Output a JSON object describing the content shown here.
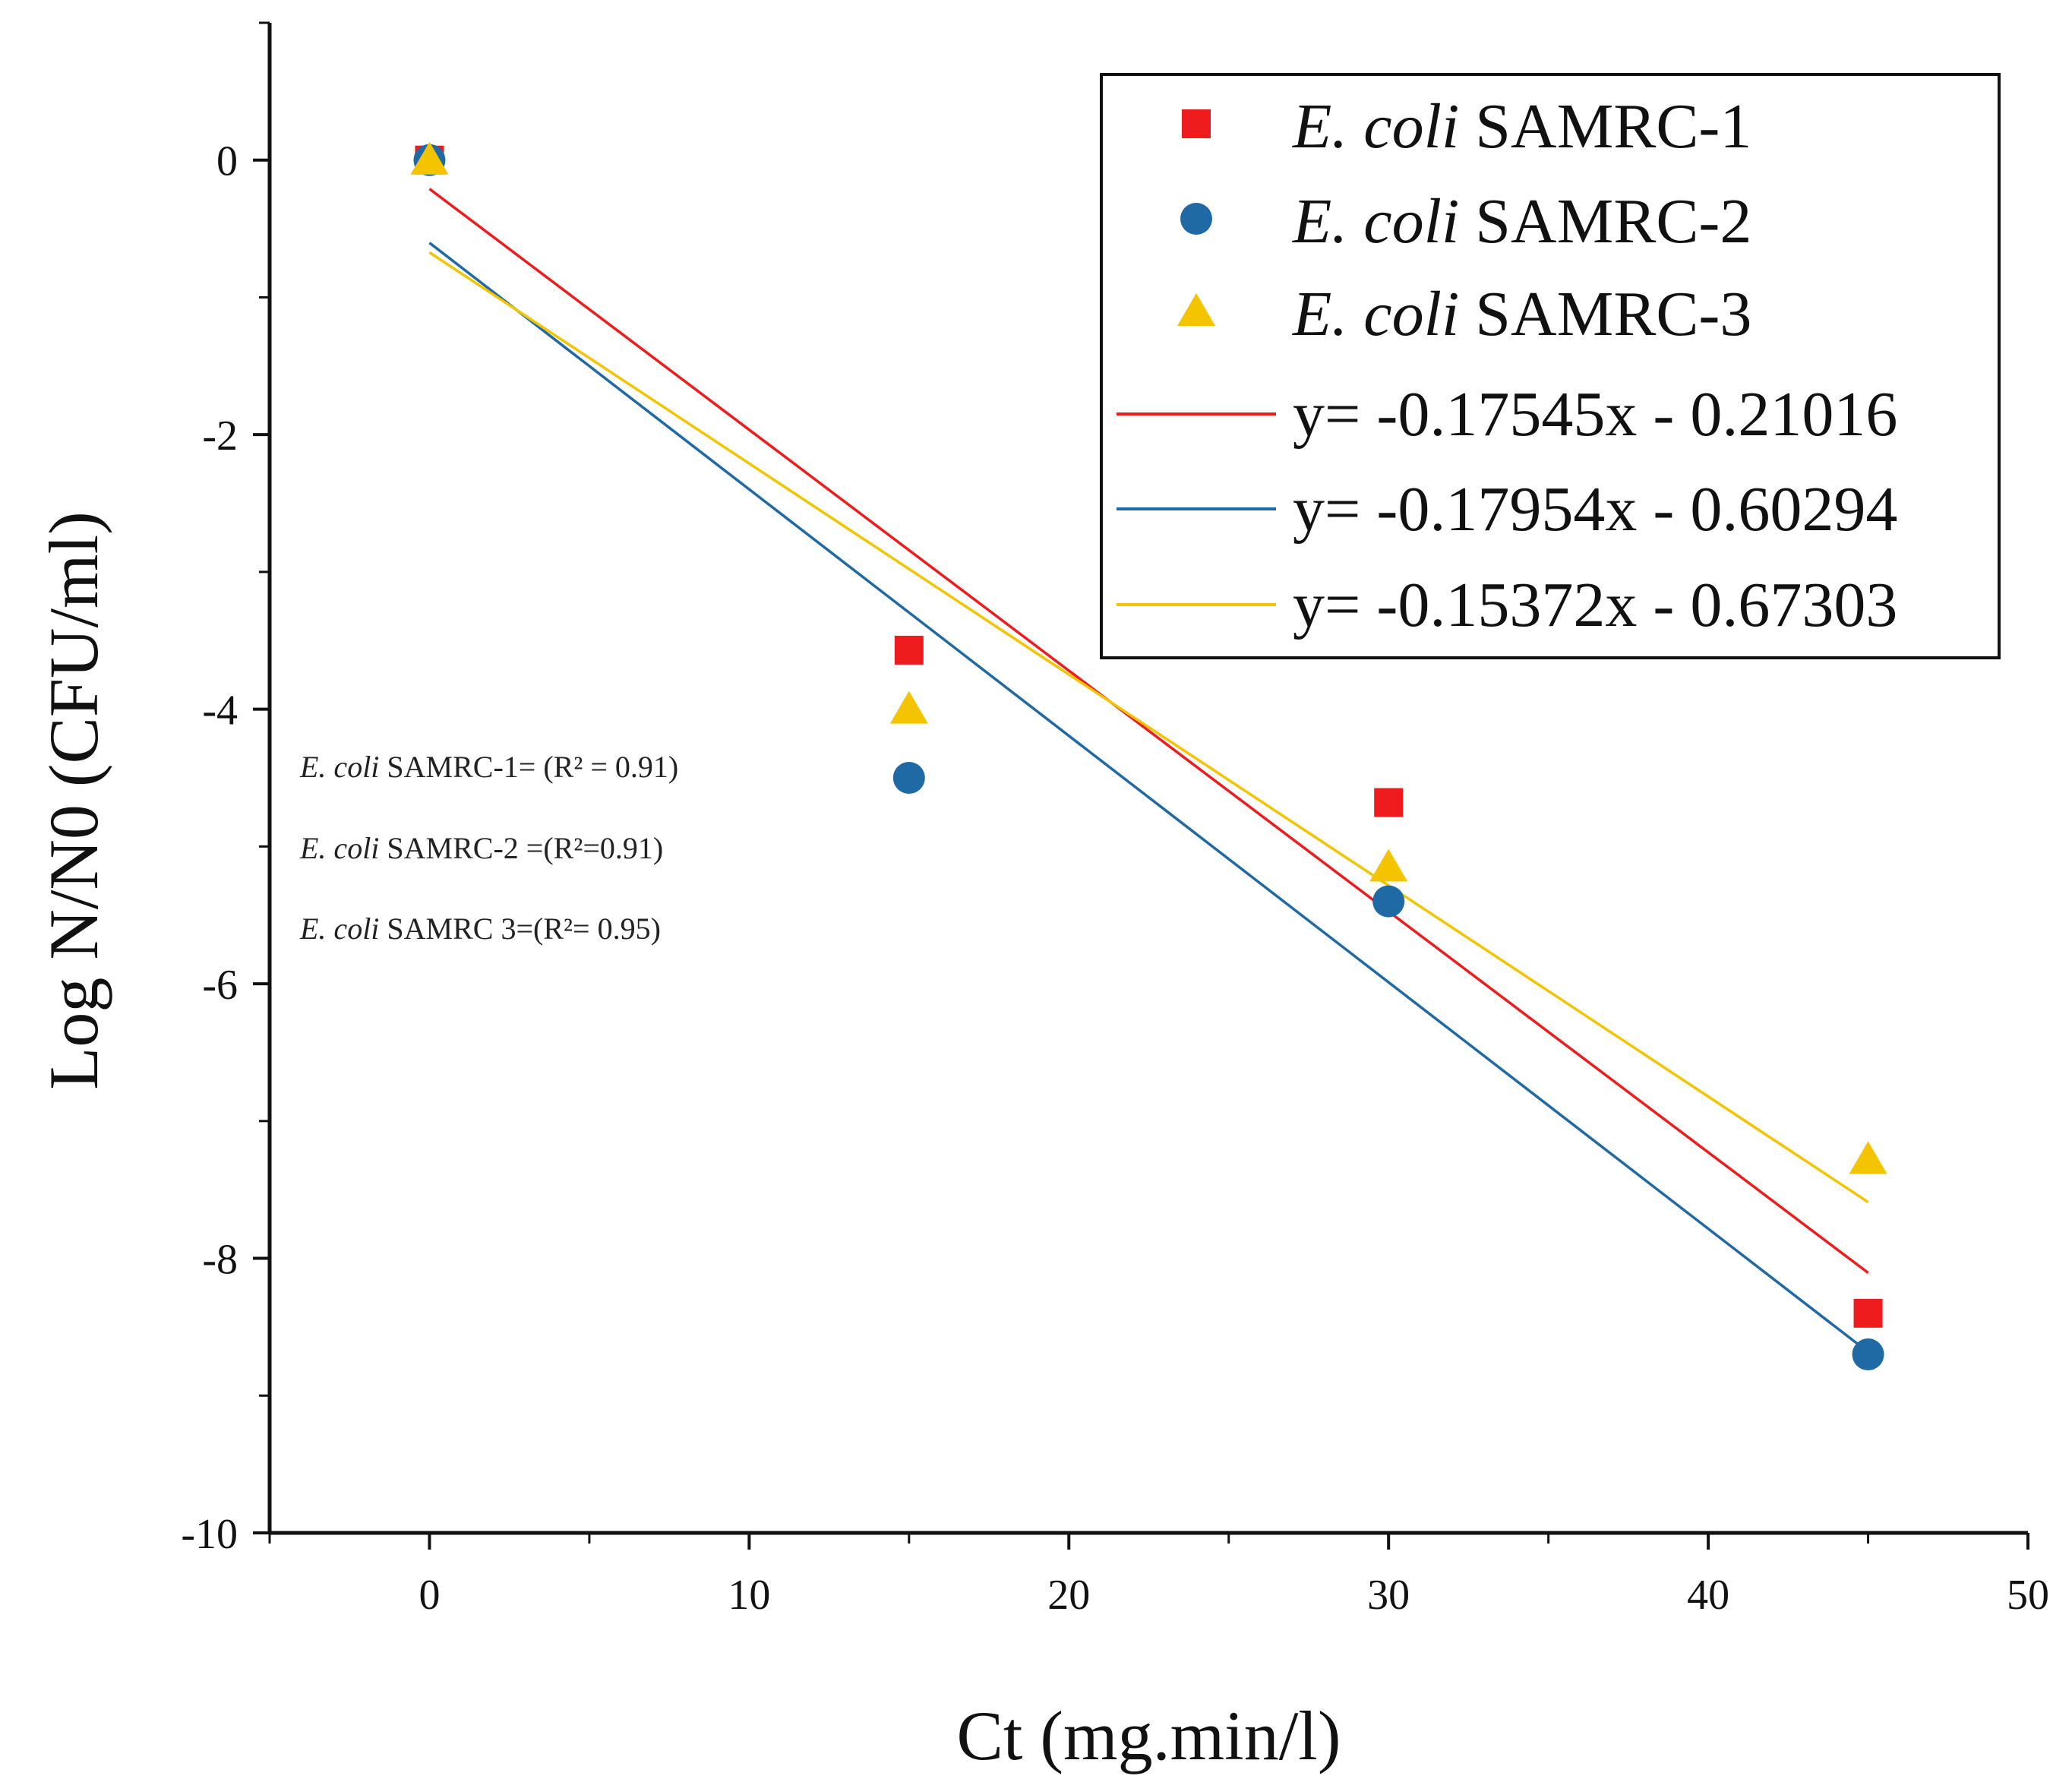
{
  "chart_data": {
    "type": "scatter",
    "title": "",
    "xlabel": "Ct (mg.min/l)",
    "ylabel": "Log N/N0 (CFU/ml)",
    "xlim": [
      -5,
      50
    ],
    "ylim": [
      -10,
      1
    ],
    "x_ticks": [
      0,
      10,
      20,
      30,
      40,
      50
    ],
    "y_ticks": [
      0,
      -2,
      -4,
      -6,
      -8,
      -10
    ],
    "x_tick_labels": [
      "0",
      "10",
      "20",
      "30",
      "40",
      "50"
    ],
    "y_tick_labels": [
      "0",
      "-2",
      "-4",
      "-6",
      "-8",
      "-10"
    ],
    "x_minor_step": 5,
    "y_minor_step": 1,
    "grid": false,
    "legend_position": "top-right",
    "series": [
      {
        "name": "E. coli SAMRC-1",
        "italic_part": "E. coli",
        "plain_part": " SAMRC-1",
        "marker": "square",
        "color": "#ee1c1c",
        "x": [
          0,
          15,
          30,
          45
        ],
        "y": [
          0,
          -3.57,
          -4.68,
          -8.4
        ]
      },
      {
        "name": "E. coli SAMRC-2",
        "italic_part": "E. coli",
        "plain_part": " SAMRC-2",
        "marker": "circle",
        "color": "#1f6aa5",
        "x": [
          0,
          15,
          30,
          45
        ],
        "y": [
          0,
          -4.5,
          -5.4,
          -8.7
        ]
      },
      {
        "name": "E. coli SAMRC-3",
        "italic_part": "E. coli",
        "plain_part": " SAMRC-3",
        "marker": "triangle",
        "color": "#f5c400",
        "x": [
          0,
          15,
          30,
          45
        ],
        "y": [
          0,
          -4.0,
          -5.15,
          -7.28
        ]
      }
    ],
    "fit_lines": [
      {
        "label": "y= -0.17545x - 0.21016",
        "slope": -0.17545,
        "intercept": -0.21016,
        "x_range": [
          0,
          45
        ],
        "color": "#ee1c1c"
      },
      {
        "label": "y= -0.17954x - 0.60294",
        "slope": -0.17954,
        "intercept": -0.60294,
        "x_range": [
          0,
          45
        ],
        "color": "#1f6aa5"
      },
      {
        "label": "y= -0.15372x - 0.67303",
        "slope": -0.15372,
        "intercept": -0.67303,
        "x_range": [
          0,
          45
        ],
        "color": "#f5c400"
      }
    ],
    "annotations": [
      {
        "italic_part": "E. coli",
        "plain_part": " SAMRC-1= (R² = 0.91)"
      },
      {
        "italic_part": "E. coli",
        "plain_part": " SAMRC-2 =(R²=0.91)"
      },
      {
        "italic_part": "E. coli",
        "plain_part": " SAMRC 3=(R²= 0.95)"
      }
    ]
  }
}
